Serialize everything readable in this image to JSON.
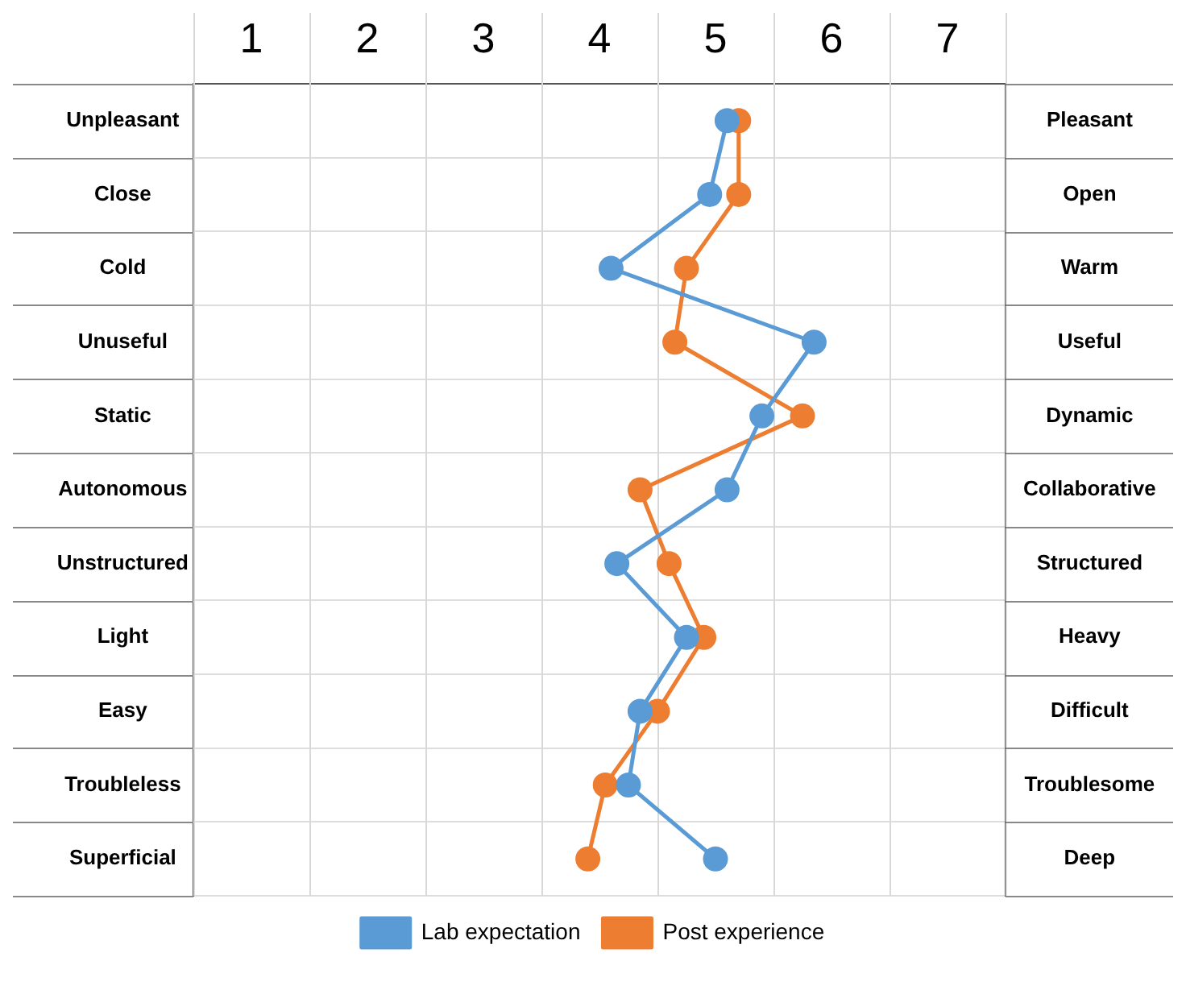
{
  "chart_data": {
    "type": "line",
    "orientation": "horizontal",
    "categories": [
      "Unpleasant",
      "Close",
      "Cold",
      "Unuseful",
      "Static",
      "Autonomous",
      "Unstructured",
      "Light",
      "Easy",
      "Troubleless",
      "Superficial"
    ],
    "y2_categories": [
      "Pleasant",
      "Open",
      "Warm",
      "Useful",
      "Dynamic",
      "Collaborative",
      "Structured",
      "Heavy",
      "Difficult",
      "Troublesome",
      "Deep"
    ],
    "series": [
      {
        "name": "Lab expectation",
        "color": "#5b9bd5",
        "values": [
          5.1,
          4.95,
          4.1,
          5.85,
          5.4,
          5.1,
          4.15,
          4.75,
          4.35,
          4.25,
          5.0
        ]
      },
      {
        "name": "Post experience",
        "color": "#ed7d31",
        "values": [
          5.2,
          5.2,
          4.75,
          4.65,
          5.75,
          4.35,
          4.6,
          4.9,
          4.5,
          4.05,
          3.9
        ]
      }
    ],
    "xlim": [
      0.5,
      7.5
    ],
    "xticks": [
      1,
      2,
      3,
      4,
      5,
      6,
      7
    ],
    "grid": true,
    "legend": "bottom",
    "marker": "circle",
    "line_style": "solid"
  }
}
